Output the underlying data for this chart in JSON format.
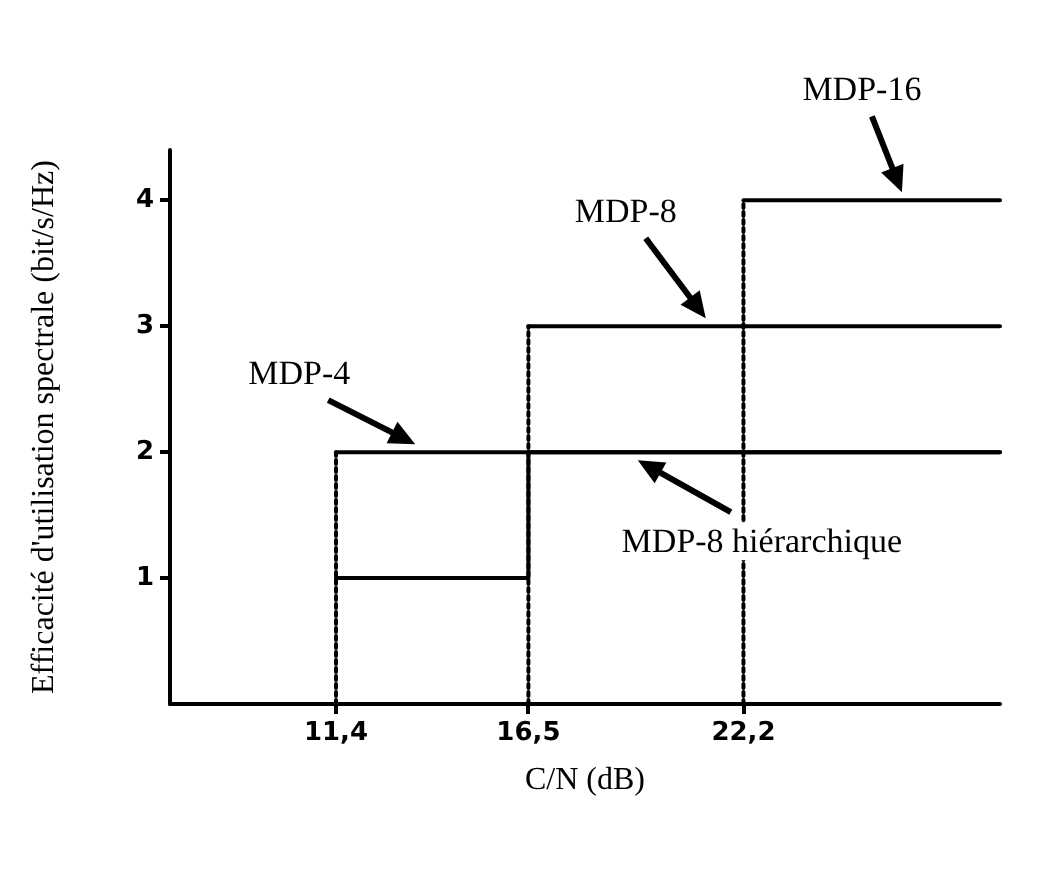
{
  "chart_data": {
    "type": "line",
    "xlabel": "C/N (dB)",
    "ylabel": "Efficacité d'utilisation spectrale (bit/s/Hz)",
    "xlim": [
      7,
      29
    ],
    "ylim": [
      0,
      4.4
    ],
    "xticks": [
      {
        "value": 11.4,
        "label": "11,4"
      },
      {
        "value": 16.5,
        "label": "16,5"
      },
      {
        "value": 22.2,
        "label": "22,2"
      }
    ],
    "yticks": [
      1,
      2,
      3,
      4
    ],
    "grid": false,
    "marker": "none",
    "series": [
      {
        "color": "#000000",
        "line_style": "dotted",
        "x": [
          11.4,
          11.4
        ],
        "values": [
          0,
          2
        ]
      },
      {
        "color": "#000000",
        "line_style": "dotted",
        "x": [
          16.5,
          16.5
        ],
        "values": [
          0,
          3
        ]
      },
      {
        "color": "#000000",
        "line_style": "dotted",
        "x": [
          22.2,
          22.2
        ],
        "values": [
          0,
          4
        ]
      },
      {
        "color": "#000000",
        "line_style": "solid",
        "x": [
          11.4,
          29
        ],
        "values": [
          2,
          2
        ]
      },
      {
        "color": "#000000",
        "line_style": "solid",
        "x": [
          16.5,
          29
        ],
        "values": [
          3,
          3
        ]
      },
      {
        "color": "#000000",
        "line_style": "solid",
        "x": [
          22.2,
          29
        ],
        "values": [
          4,
          4
        ]
      },
      {
        "type": "step",
        "color": "#000000",
        "line_style": "solid",
        "x": [
          11.4,
          16.5,
          29
        ],
        "values": [
          1,
          2,
          2
        ]
      }
    ],
    "annotations": [
      {
        "text": "MDP-4",
        "x": 13.5,
        "y": 2
      },
      {
        "text": "MDP-8",
        "x": 21.2,
        "y": 3
      },
      {
        "text": "MDP-16",
        "x": 26.4,
        "y": 4
      },
      {
        "text": "MDP-8 hiérarchique",
        "x": 19.4,
        "y": 2
      }
    ]
  }
}
